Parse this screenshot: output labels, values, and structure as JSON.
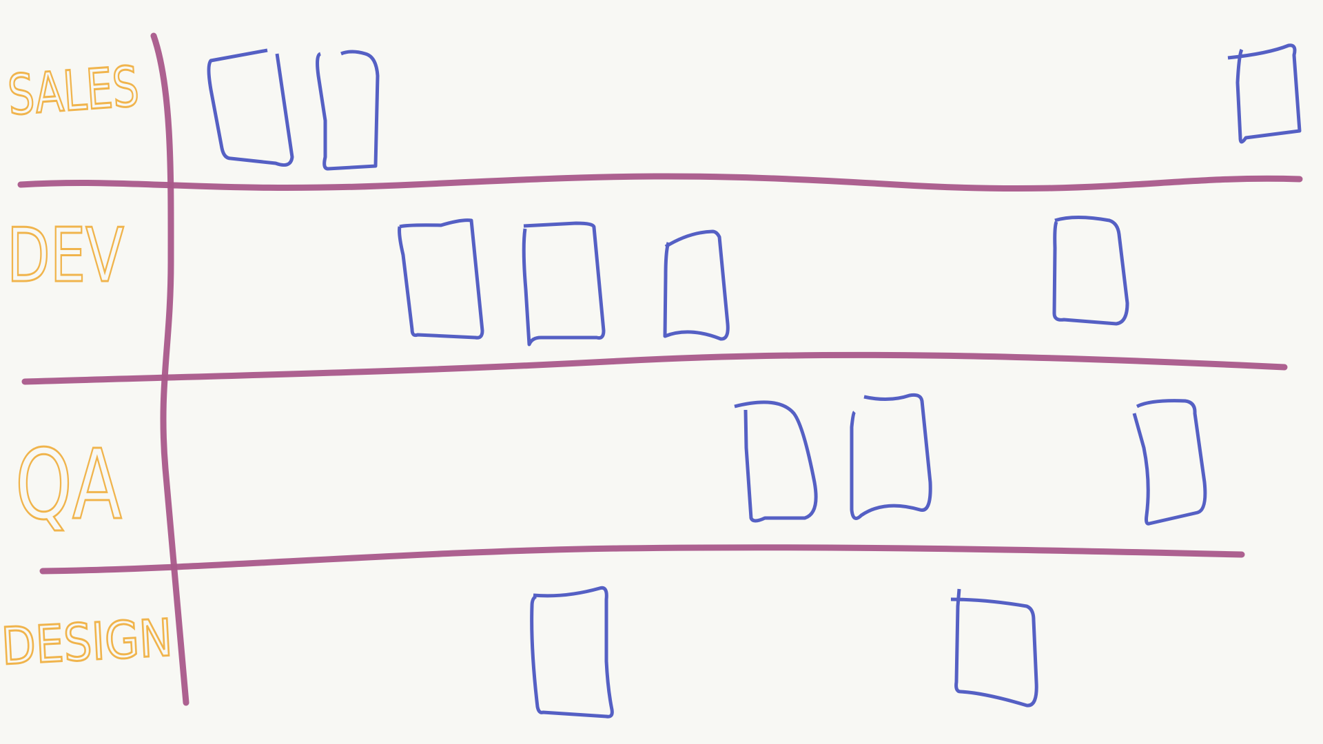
{
  "lanes": [
    {
      "label": "SALES"
    },
    {
      "label": "DEV"
    },
    {
      "label": "QA"
    },
    {
      "label": "DESIGN"
    }
  ]
}
